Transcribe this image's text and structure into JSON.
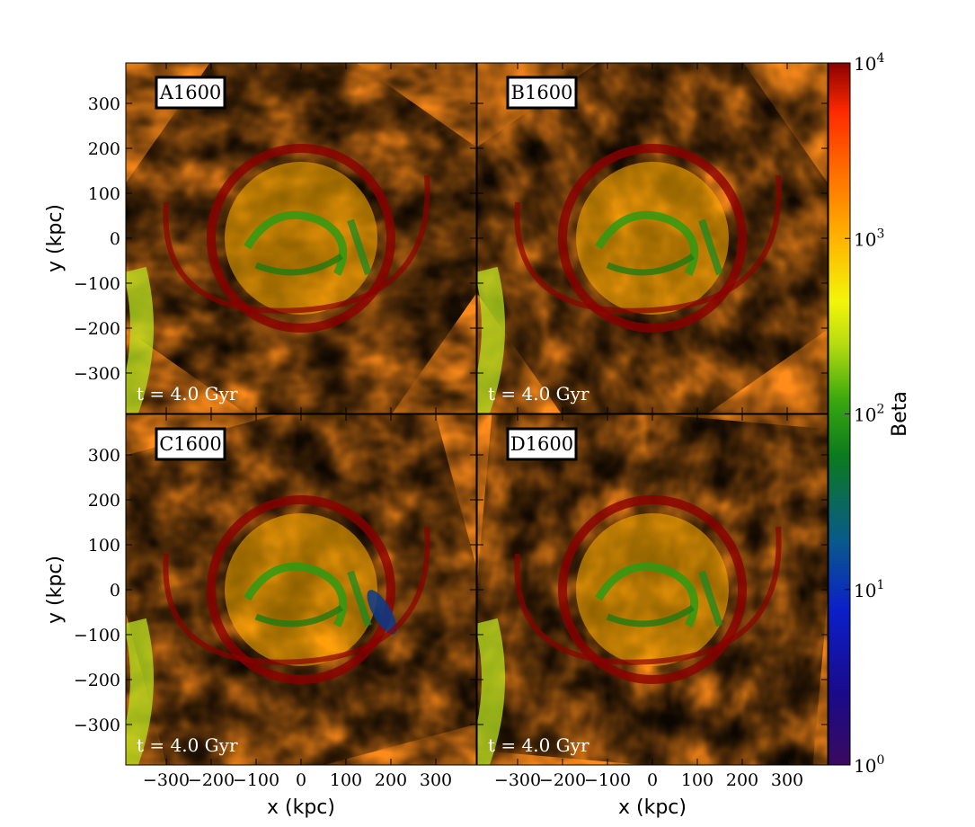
{
  "chart_data": {
    "type": "heatmap",
    "quantity": "Beta",
    "colorbar": {
      "label": "Beta",
      "scale": "log",
      "range": [
        1,
        10000
      ],
      "ticks": [
        {
          "base": "10",
          "exp": "0",
          "value": 1
        },
        {
          "base": "10",
          "exp": "1",
          "value": 10
        },
        {
          "base": "10",
          "exp": "2",
          "value": 100
        },
        {
          "base": "10",
          "exp": "3",
          "value": 1000
        },
        {
          "base": "10",
          "exp": "4",
          "value": 10000
        }
      ]
    },
    "xlabel": "x  (kpc)",
    "ylabel": "y  (kpc)",
    "xlim": [
      -390,
      390
    ],
    "ylim": [
      -390,
      390
    ],
    "xticks": [
      -300,
      -200,
      -100,
      0,
      100,
      200,
      300
    ],
    "yticks": [
      -300,
      -200,
      -100,
      0,
      100,
      200,
      300
    ],
    "xtick_labels": [
      "−300",
      "−200",
      "−100",
      "0",
      "100",
      "200",
      "300"
    ],
    "ytick_labels": [
      "−300",
      "−200",
      "−100",
      "0",
      "100",
      "200",
      "300"
    ],
    "panels": [
      {
        "label": "A1600",
        "time": "t = 4.0 Gyr"
      },
      {
        "label": "B1600",
        "time": "t = 4.0 Gyr"
      },
      {
        "label": "C1600",
        "time": "t = 4.0 Gyr"
      },
      {
        "label": "D1600",
        "time": "t = 4.0 Gyr"
      }
    ]
  }
}
